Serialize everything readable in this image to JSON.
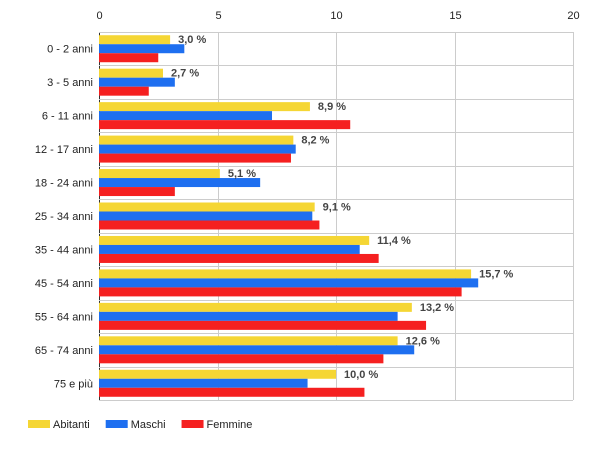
{
  "chart_data": {
    "type": "bar",
    "orientation": "horizontal",
    "title": "",
    "xlabel": "",
    "ylabel": "",
    "xlim": [
      0,
      20
    ],
    "x_ticks": [
      0,
      5,
      10,
      15,
      20
    ],
    "grid": true,
    "legend_position": "bottom-left",
    "categories": [
      "0 - 2 anni",
      "3 - 5 anni",
      "6 - 11 anni",
      "12 - 17 anni",
      "18 - 24 anni",
      "25 - 34 anni",
      "35 - 44 anni",
      "45 - 54 anni",
      "55 - 64 anni",
      "65 - 74 anni",
      "75 e più"
    ],
    "series": [
      {
        "name": "Abitanti",
        "color": "#f5d634",
        "values": [
          3.0,
          2.7,
          8.9,
          8.2,
          5.1,
          9.1,
          11.4,
          15.7,
          13.2,
          12.6,
          10.0
        ],
        "labels": [
          "3,0 %",
          "2,7 %",
          "8,9 %",
          "8,2 %",
          "5,1 %",
          "9,1 %",
          "11,4 %",
          "15,7 %",
          "13,2 %",
          "12,6 %",
          "10,0 %"
        ]
      },
      {
        "name": "Maschi",
        "color": "#1e6ff0",
        "values": [
          3.6,
          3.2,
          7.3,
          8.3,
          6.8,
          9.0,
          11.0,
          16.0,
          12.6,
          13.3,
          8.8
        ]
      },
      {
        "name": "Femmine",
        "color": "#f52020",
        "values": [
          2.5,
          2.1,
          10.6,
          8.1,
          3.2,
          9.3,
          11.8,
          15.3,
          13.8,
          12.0,
          11.2
        ]
      }
    ]
  }
}
